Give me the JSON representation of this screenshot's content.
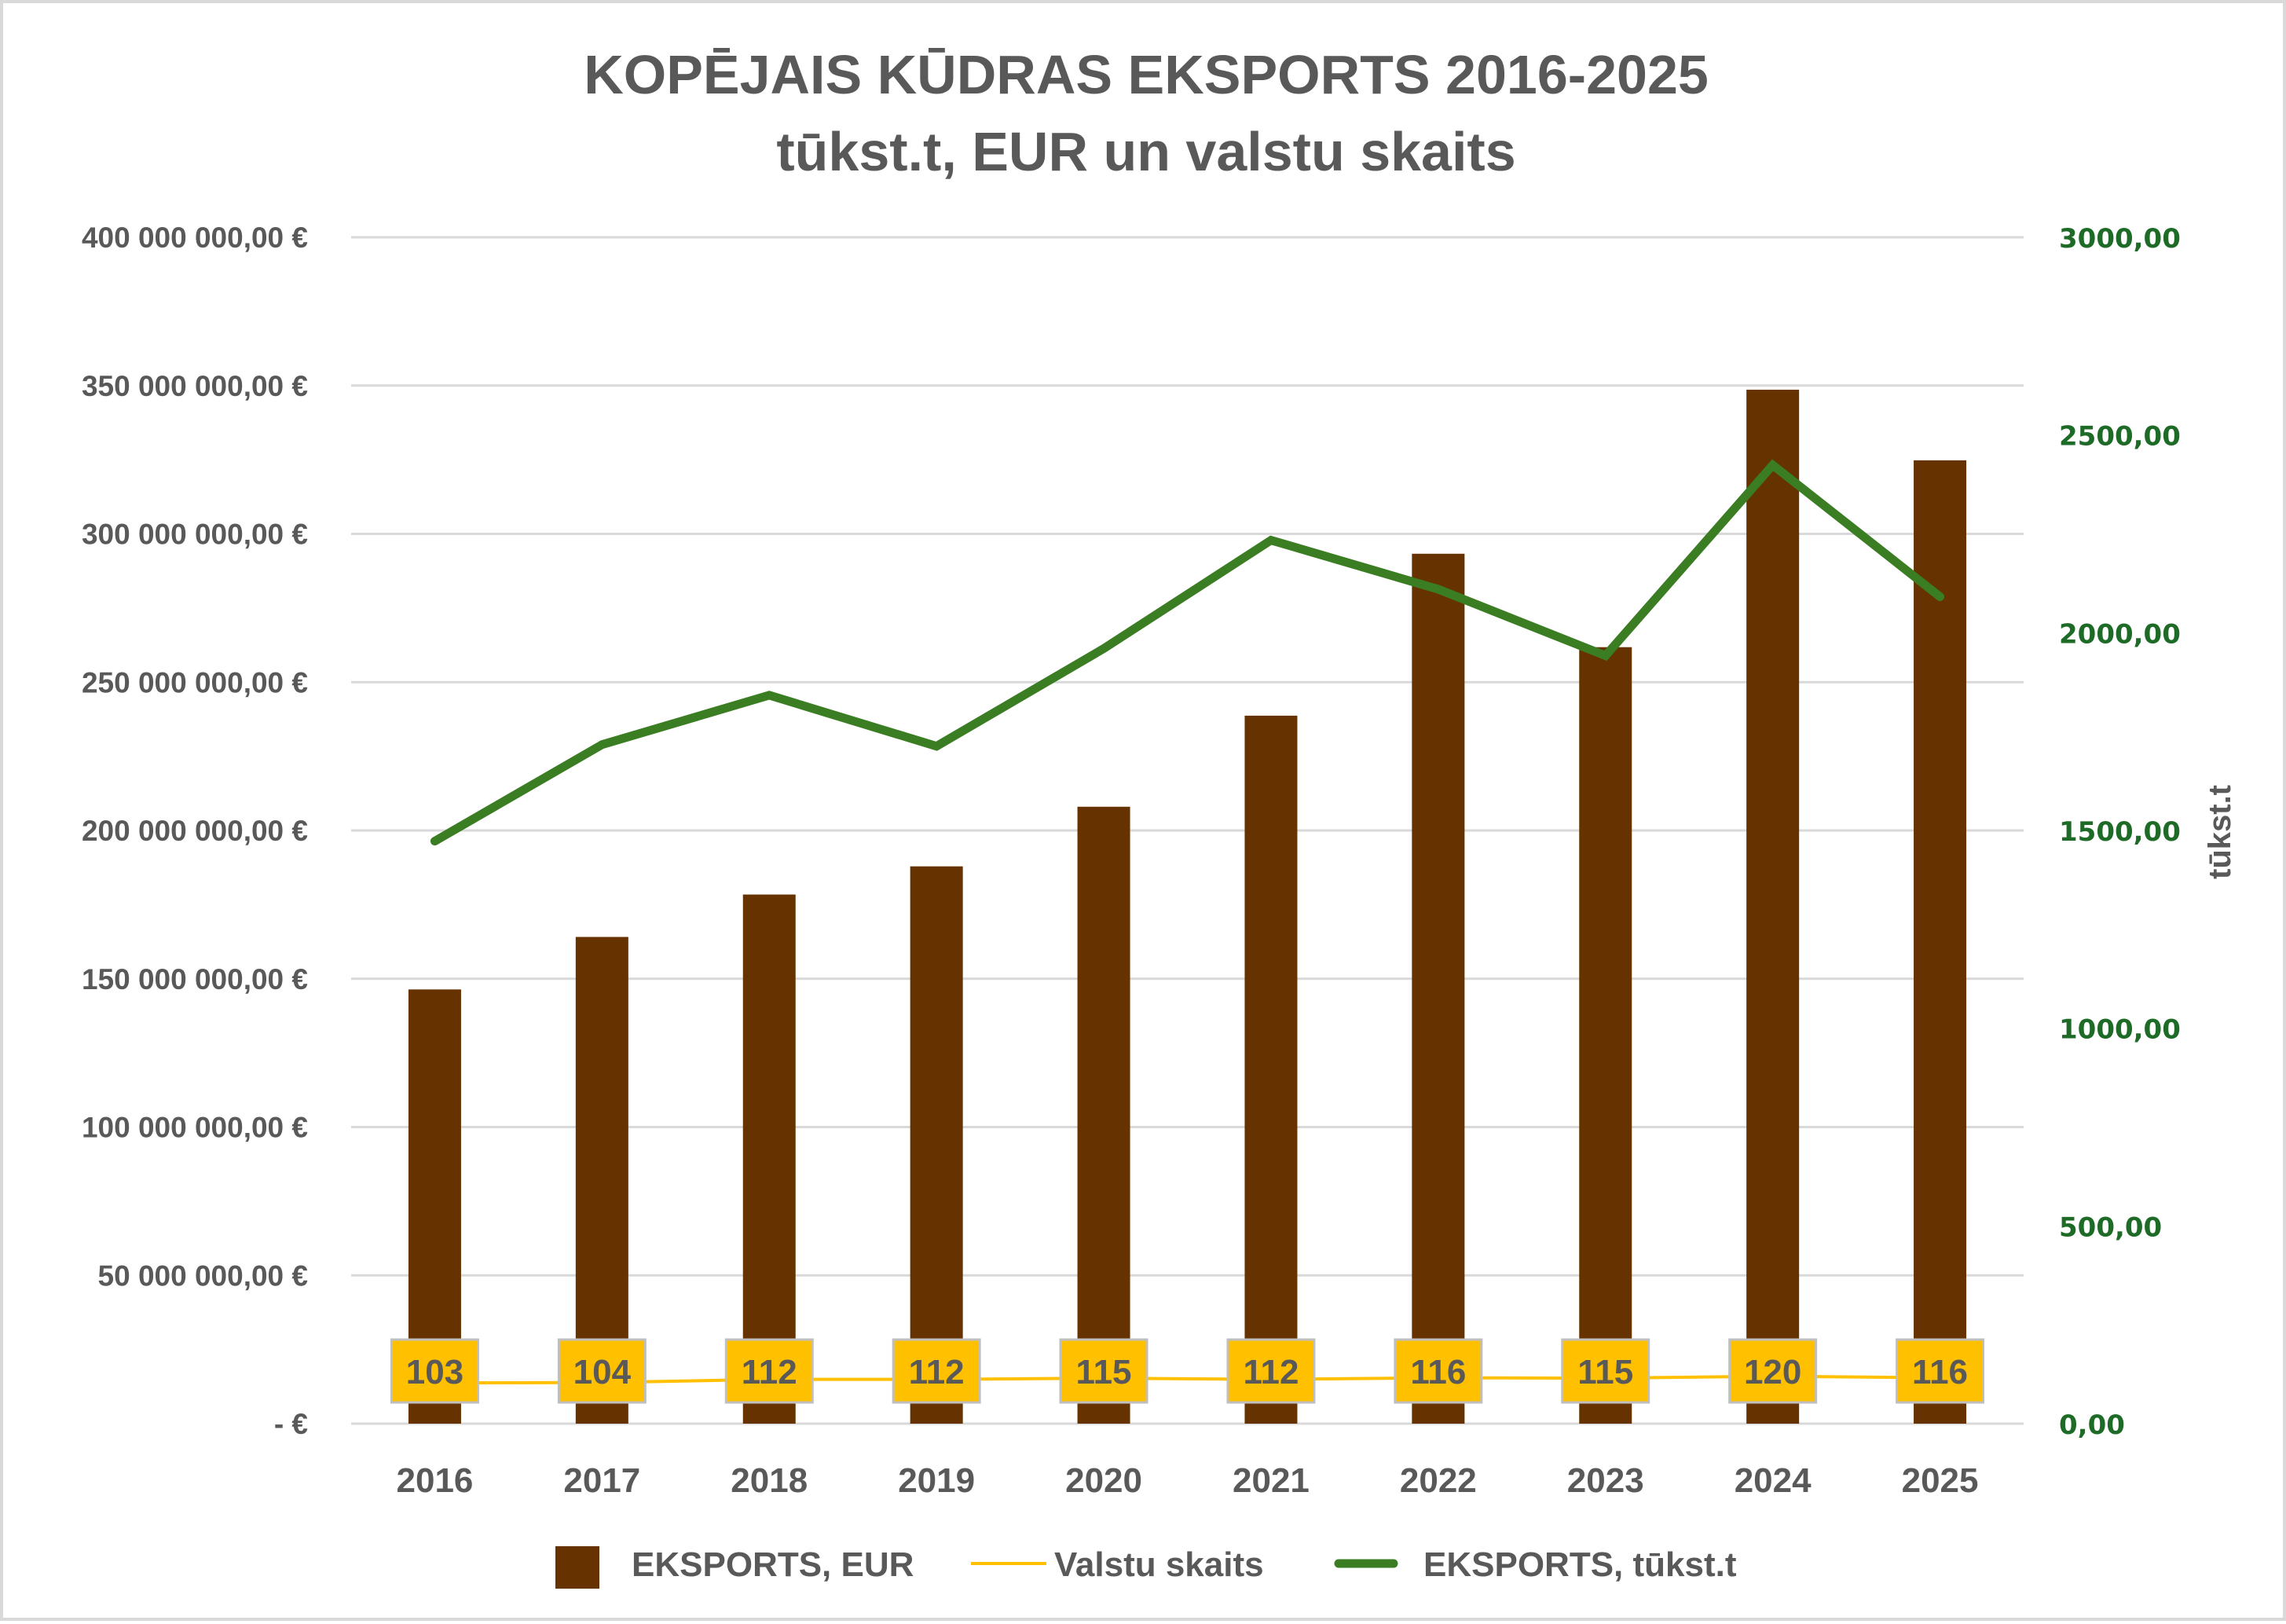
{
  "chart": {
    "title_line1": "KOPĒJAIS KŪDRAS EKSPORTS 2016-2025",
    "title_line2": "tūkst.t, EUR un valstu skaits",
    "left_axis_ticks": [
      "400 000 000,00 €",
      "350 000 000,00 €",
      "300 000 000,00 €",
      "250 000 000,00 €",
      "200 000 000,00 €",
      "150 000 000,00 €",
      "100 000 000,00 €",
      "50 000 000,00 €",
      "-   €"
    ],
    "right_axis_ticks": [
      "3000,00",
      "2500,00",
      "2000,00",
      "1500,00",
      "1000,00",
      "500,00",
      "0,00"
    ],
    "right_axis_title": "tūkst.t",
    "legend": {
      "bar": "EKSPORTS, EUR",
      "line_countries": "Valstu skaits",
      "line_tonnes": "EKSPORTS, tūkst.t"
    },
    "colors": {
      "bar": "#663300",
      "tonnes_line": "#3a7d22",
      "countries_line": "#ffc000",
      "label_box": "#ffc000",
      "label_border": "#bfbfbf",
      "gridline": "#d9d9d9",
      "text": "#595959",
      "right_axis_text": "#1e6b27"
    }
  },
  "chart_data": {
    "type": "bar",
    "title": "KOPĒJAIS KŪDRAS EKSPORTS 2016-2025 — tūkst.t, EUR un valstu skaits",
    "categories": [
      "2016",
      "2017",
      "2018",
      "2019",
      "2020",
      "2021",
      "2022",
      "2023",
      "2024",
      "2025"
    ],
    "series": [
      {
        "name": "EKSPORTS, EUR",
        "type": "bar",
        "axis": "left",
        "values": [
          146400000,
          164100000,
          178400000,
          187900000,
          208000000,
          238700000,
          293300000,
          261800000,
          348600000,
          324800000
        ]
      },
      {
        "name": "Valstu skaits",
        "type": "line",
        "axis": "right",
        "values": [
          103,
          104,
          112,
          112,
          115,
          112,
          116,
          115,
          120,
          116
        ],
        "data_labels": [
          "103",
          "104",
          "112",
          "112",
          "115",
          "112",
          "116",
          "115",
          "120",
          "116"
        ]
      },
      {
        "name": "EKSPORTS, tūkst.t",
        "type": "line",
        "axis": "right",
        "values": [
          1473,
          1717,
          1842,
          1713,
          1960,
          2234,
          2110,
          1942,
          2424,
          2091
        ]
      }
    ],
    "xlabel": "",
    "ylabel": "",
    "y2label": "tūkst.t",
    "ylim": [
      0,
      400000000
    ],
    "y2lim": [
      0,
      3000
    ],
    "grid": true,
    "legend_position": "bottom"
  }
}
